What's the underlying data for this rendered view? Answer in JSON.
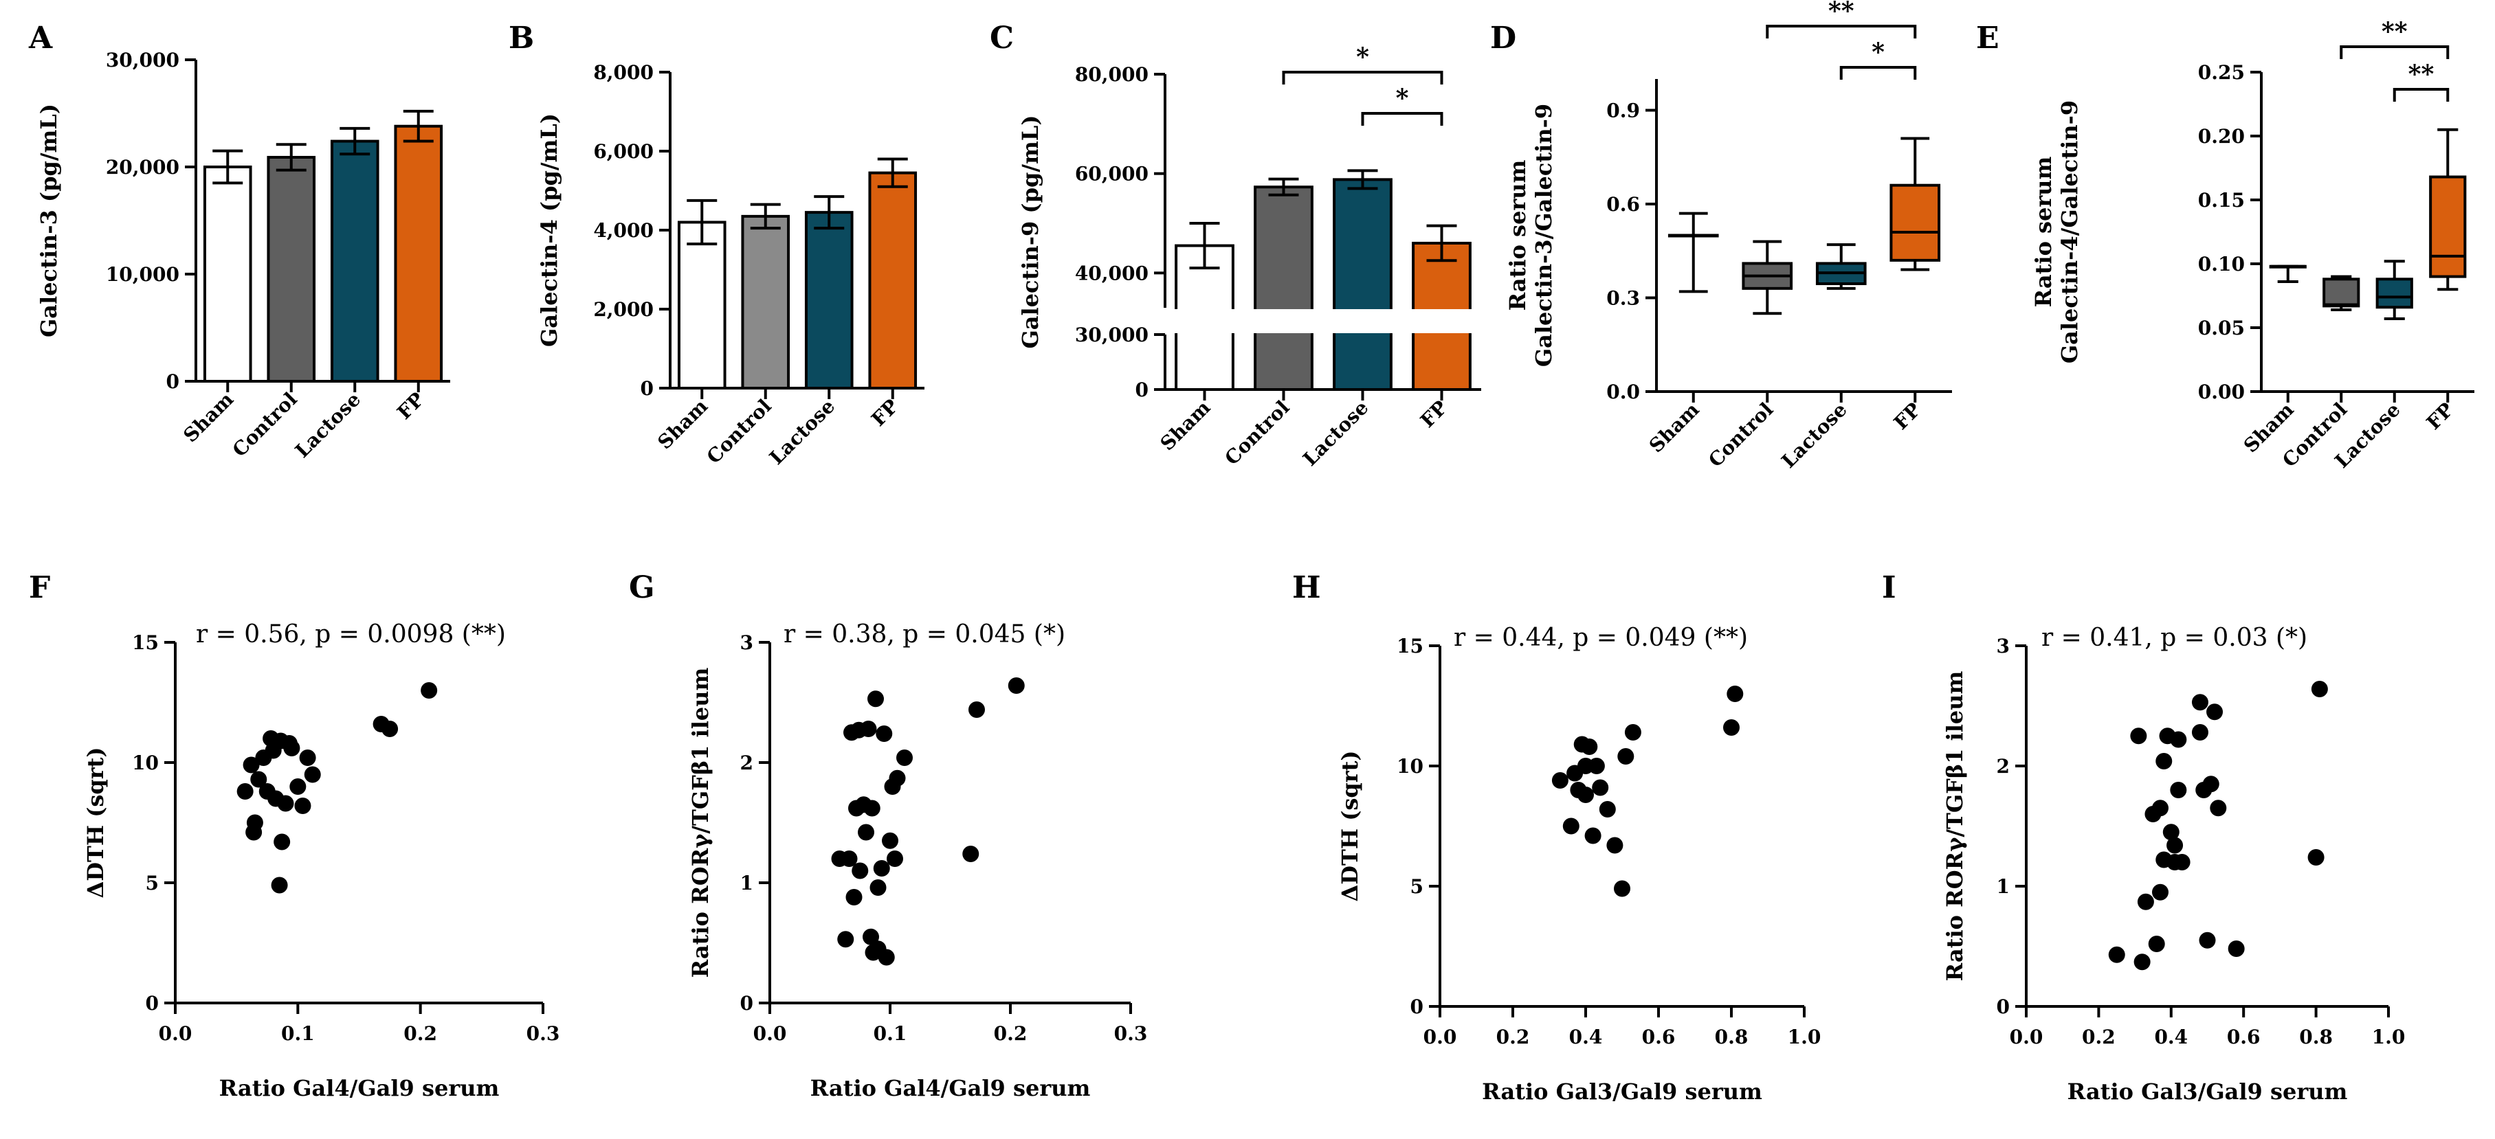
{
  "chart_data": [
    {
      "id": "A",
      "letter": "A",
      "type": "bar",
      "categories": [
        "Sham",
        "Control",
        "Lactose",
        "FP"
      ],
      "values": [
        20000,
        20900,
        22400,
        23800
      ],
      "errors": [
        1500,
        1200,
        1200,
        1400
      ],
      "ylabel": "Galectin-3 (pg/mL)",
      "ylim": [
        0,
        30000
      ],
      "yticks": [
        0,
        10000,
        20000,
        30000
      ],
      "ytick_labels": [
        "0",
        "10,000",
        "20,000",
        "30,000"
      ],
      "colors": [
        "#ffffff",
        "#5f5f5f",
        "#0b4a5e",
        "#d95f0e"
      ]
    },
    {
      "id": "B",
      "letter": "B",
      "type": "bar",
      "categories": [
        "Sham",
        "Control",
        "Lactose",
        "FP"
      ],
      "values": [
        4200,
        4350,
        4450,
        5450
      ],
      "errors": [
        550,
        300,
        400,
        350
      ],
      "ylabel": "Galectin-4 (pg/mL)",
      "ylim": [
        0,
        8000
      ],
      "yticks": [
        0,
        2000,
        4000,
        6000,
        8000
      ],
      "ytick_labels": [
        "0",
        "2,000",
        "4,000",
        "6,000",
        "8,000"
      ],
      "colors": [
        "#ffffff",
        "#8a8a8a",
        "#0b4a5e",
        "#d95f0e"
      ]
    },
    {
      "id": "C",
      "letter": "C",
      "type": "bar",
      "categories": [
        "Sham",
        "Control",
        "Lactose",
        "FP"
      ],
      "values": [
        45500,
        57300,
        58800,
        46000
      ],
      "errors": [
        4500,
        1600,
        1800,
        3500
      ],
      "ylabel": "Galectin-9 (pg/mL)",
      "axis_break": [
        30000,
        33000
      ],
      "yticks": [
        0,
        30000,
        40000,
        60000,
        80000
      ],
      "ytick_labels": [
        "0",
        "30,000",
        "40,000",
        "60,000",
        "80,000"
      ],
      "colors": [
        "#ffffff",
        "#5f5f5f",
        "#0b4a5e",
        "#d95f0e"
      ],
      "significance": [
        {
          "from": 1,
          "to": 3,
          "label": "*"
        },
        {
          "from": 2,
          "to": 3,
          "label": "*"
        }
      ]
    },
    {
      "id": "D",
      "letter": "D",
      "type": "box",
      "categories": [
        "Sham",
        "Control",
        "Lactose",
        "FP"
      ],
      "boxes": [
        {
          "min": 0.32,
          "q1": 0.5,
          "median": 0.5,
          "q3": 0.5,
          "max": 0.57
        },
        {
          "min": 0.25,
          "q1": 0.33,
          "median": 0.37,
          "q3": 0.41,
          "max": 0.48
        },
        {
          "min": 0.33,
          "q1": 0.345,
          "median": 0.38,
          "q3": 0.41,
          "max": 0.47
        },
        {
          "min": 0.39,
          "q1": 0.42,
          "median": 0.51,
          "q3": 0.66,
          "max": 0.81
        }
      ],
      "ylabel": "Ratio serum\nGalectin-3/Galectin-9",
      "ylim": [
        0,
        1.0
      ],
      "yticks": [
        0,
        0.3,
        0.6,
        0.9
      ],
      "ytick_labels": [
        "0.0",
        "0.3",
        "0.6",
        "0.9"
      ],
      "colors": [
        "#ffffff",
        "#5f5f5f",
        "#0b4a5e",
        "#d95f0e"
      ],
      "significance": [
        {
          "from": 1,
          "to": 3,
          "label": "**"
        },
        {
          "from": 2,
          "to": 3,
          "label": "*"
        }
      ]
    },
    {
      "id": "E",
      "letter": "E",
      "type": "box",
      "categories": [
        "Sham",
        "Control",
        "Lactose",
        "FP"
      ],
      "boxes": [
        {
          "min": 0.086,
          "q1": 0.098,
          "median": 0.098,
          "q3": 0.098,
          "max": 0.098
        },
        {
          "min": 0.064,
          "q1": 0.067,
          "median": 0.068,
          "q3": 0.088,
          "max": 0.09
        },
        {
          "min": 0.057,
          "q1": 0.066,
          "median": 0.074,
          "q3": 0.088,
          "max": 0.102
        },
        {
          "min": 0.08,
          "q1": 0.09,
          "median": 0.106,
          "q3": 0.168,
          "max": 0.205
        }
      ],
      "ylabel": "Ratio serum\nGalectin-4/Galectin-9",
      "ylim": [
        0,
        0.25
      ],
      "yticks": [
        0,
        0.05,
        0.1,
        0.15,
        0.2,
        0.25
      ],
      "ytick_labels": [
        "0.00",
        "0.05",
        "0.10",
        "0.15",
        "0.20",
        "0.25"
      ],
      "colors": [
        "#ffffff",
        "#5f5f5f",
        "#0b4a5e",
        "#d95f0e"
      ],
      "significance": [
        {
          "from": 1,
          "to": 3,
          "label": "**"
        },
        {
          "from": 2,
          "to": 3,
          "label": "**"
        }
      ]
    },
    {
      "id": "F",
      "letter": "F",
      "type": "scatter",
      "annotation": "r = 0.56, p = 0.0098 (**)",
      "xlabel": "Ratio Gal4/Gal9 serum",
      "ylabel": "ΔDTH (sqrt)",
      "xlim": [
        0,
        0.3
      ],
      "ylim": [
        0,
        15
      ],
      "xticks": [
        0,
        0.1,
        0.2,
        0.3
      ],
      "xtick_labels": [
        "0.0",
        "0.1",
        "0.2",
        "0.3"
      ],
      "yticks": [
        0,
        5,
        10,
        15
      ],
      "ytick_labels": [
        "0",
        "5",
        "10",
        "15"
      ],
      "x": [
        0.057,
        0.062,
        0.065,
        0.064,
        0.068,
        0.072,
        0.075,
        0.078,
        0.08,
        0.082,
        0.085,
        0.086,
        0.087,
        0.09,
        0.093,
        0.095,
        0.1,
        0.104,
        0.108,
        0.112,
        0.168,
        0.175,
        0.207
      ],
      "y": [
        8.8,
        9.9,
        7.5,
        7.1,
        9.3,
        10.2,
        8.8,
        11.0,
        10.5,
        8.5,
        4.9,
        10.9,
        6.7,
        8.3,
        10.8,
        10.6,
        9.0,
        8.2,
        10.2,
        9.5,
        11.6,
        11.4,
        13.0
      ]
    },
    {
      "id": "G",
      "letter": "G",
      "type": "scatter",
      "annotation": "r = 0.38, p = 0.045 (*)",
      "xlabel": "Ratio Gal4/Gal9 serum",
      "ylabel": "Ratio RORγ/TGFβ1 ileum",
      "xlim": [
        0,
        0.3
      ],
      "ylim": [
        0,
        3
      ],
      "xticks": [
        0,
        0.1,
        0.2,
        0.3
      ],
      "xtick_labels": [
        "0.0",
        "0.1",
        "0.2",
        "0.3"
      ],
      "yticks": [
        0,
        1,
        2,
        3
      ],
      "ytick_labels": [
        "0",
        "1",
        "2",
        "3"
      ],
      "x": [
        0.058,
        0.063,
        0.066,
        0.068,
        0.07,
        0.072,
        0.074,
        0.075,
        0.078,
        0.08,
        0.082,
        0.084,
        0.085,
        0.086,
        0.088,
        0.09,
        0.09,
        0.093,
        0.095,
        0.097,
        0.1,
        0.102,
        0.104,
        0.106,
        0.112,
        0.167,
        0.172,
        0.205
      ],
      "y": [
        1.2,
        0.53,
        1.2,
        2.25,
        0.88,
        1.62,
        2.27,
        1.1,
        1.65,
        1.42,
        2.28,
        0.55,
        1.62,
        0.42,
        2.53,
        0.96,
        0.45,
        1.12,
        2.24,
        0.38,
        1.35,
        1.8,
        1.2,
        1.87,
        2.04,
        1.24,
        2.44,
        2.64
      ]
    },
    {
      "id": "H",
      "letter": "H",
      "type": "scatter",
      "annotation": "r = 0.44, p = 0.049 (**)",
      "xlabel": "Ratio Gal3/Gal9 serum",
      "ylabel": "ΔDTH (sqrt)",
      "xlim": [
        0,
        1.0
      ],
      "ylim": [
        0,
        15
      ],
      "xticks": [
        0,
        0.2,
        0.4,
        0.6,
        0.8,
        1.0
      ],
      "xtick_labels": [
        "0.0",
        "0.2",
        "0.4",
        "0.6",
        "0.8",
        "1.0"
      ],
      "yticks": [
        0,
        5,
        10,
        15
      ],
      "ytick_labels": [
        "0",
        "5",
        "10",
        "15"
      ],
      "x": [
        0.33,
        0.36,
        0.37,
        0.38,
        0.39,
        0.4,
        0.4,
        0.41,
        0.42,
        0.43,
        0.44,
        0.46,
        0.48,
        0.5,
        0.51,
        0.53,
        0.8,
        0.81
      ],
      "y": [
        9.4,
        7.5,
        9.7,
        9.0,
        10.9,
        8.8,
        10.0,
        10.8,
        7.1,
        10.0,
        9.1,
        8.2,
        6.7,
        4.9,
        10.4,
        11.4,
        11.6,
        13.0
      ]
    },
    {
      "id": "I",
      "letter": "I",
      "type": "scatter",
      "annotation": "r = 0.41, p = 0.03 (*)",
      "xlabel": "Ratio Gal3/Gal9 serum",
      "ylabel": "Ratio RORγ/TGFβ1 ileum",
      "xlim": [
        0,
        1.0
      ],
      "ylim": [
        0,
        3
      ],
      "xticks": [
        0,
        0.2,
        0.4,
        0.6,
        0.8,
        1.0
      ],
      "xtick_labels": [
        "0.0",
        "0.2",
        "0.4",
        "0.6",
        "0.8",
        "1.0"
      ],
      "yticks": [
        0,
        1,
        2,
        3
      ],
      "ytick_labels": [
        "0",
        "1",
        "2",
        "3"
      ],
      "x": [
        0.25,
        0.31,
        0.32,
        0.33,
        0.35,
        0.36,
        0.37,
        0.37,
        0.38,
        0.38,
        0.39,
        0.4,
        0.41,
        0.41,
        0.42,
        0.42,
        0.43,
        0.48,
        0.48,
        0.49,
        0.5,
        0.51,
        0.52,
        0.53,
        0.58,
        0.8,
        0.81
      ],
      "y": [
        0.43,
        2.25,
        0.37,
        0.87,
        1.6,
        0.52,
        0.95,
        1.65,
        2.04,
        1.22,
        2.25,
        1.45,
        1.2,
        1.34,
        2.22,
        1.8,
        1.2,
        2.28,
        2.53,
        1.8,
        0.55,
        1.85,
        2.45,
        1.65,
        0.48,
        1.24,
        2.64
      ]
    }
  ]
}
